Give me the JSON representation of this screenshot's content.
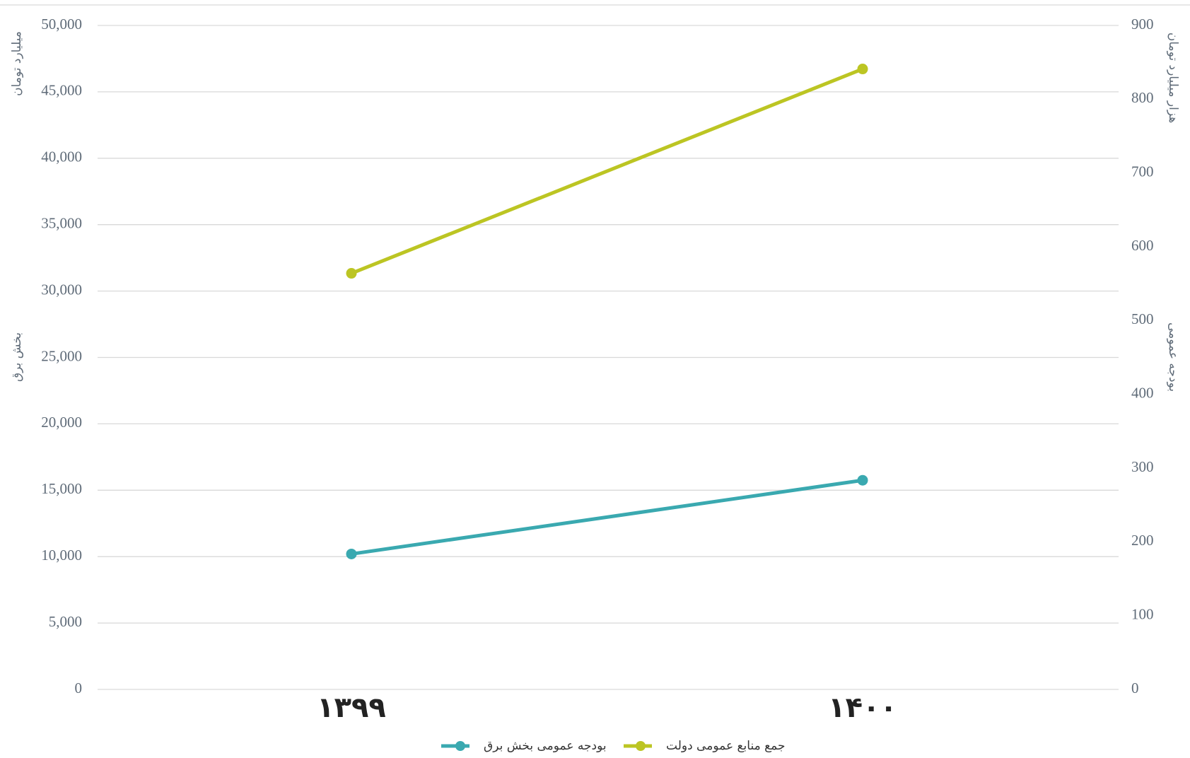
{
  "chart_data": {
    "type": "line",
    "categories": [
      "۱۳۹۹",
      "۱۴۰۰"
    ],
    "left_axis": {
      "ticks": [
        "0",
        "5,000",
        "10,000",
        "15,000",
        "20,000",
        "25,000",
        "30,000",
        "35,000",
        "40,000",
        "45,000",
        "50,000"
      ],
      "range": [
        0,
        50000
      ],
      "title_top": "میلیارد تومان",
      "title_bottom": "بخش برق"
    },
    "right_axis": {
      "ticks": [
        "0",
        "100",
        "200",
        "300",
        "400",
        "500",
        "600",
        "700",
        "800",
        "900"
      ],
      "range": [
        0,
        900
      ],
      "title_top": "هزار میلیارد تومان",
      "title_bottom": "بودجه عمومی"
    },
    "series": [
      {
        "name": "بودجه عمومی بخش برق",
        "axis": "left",
        "color": "#3aa9b0",
        "values": [
          10200,
          15750
        ]
      },
      {
        "name": "جمع منابع عمومی دولت",
        "axis": "right",
        "color": "#bcc523",
        "values": [
          564,
          841
        ]
      }
    ],
    "grid": true,
    "legend_position": "bottom"
  }
}
